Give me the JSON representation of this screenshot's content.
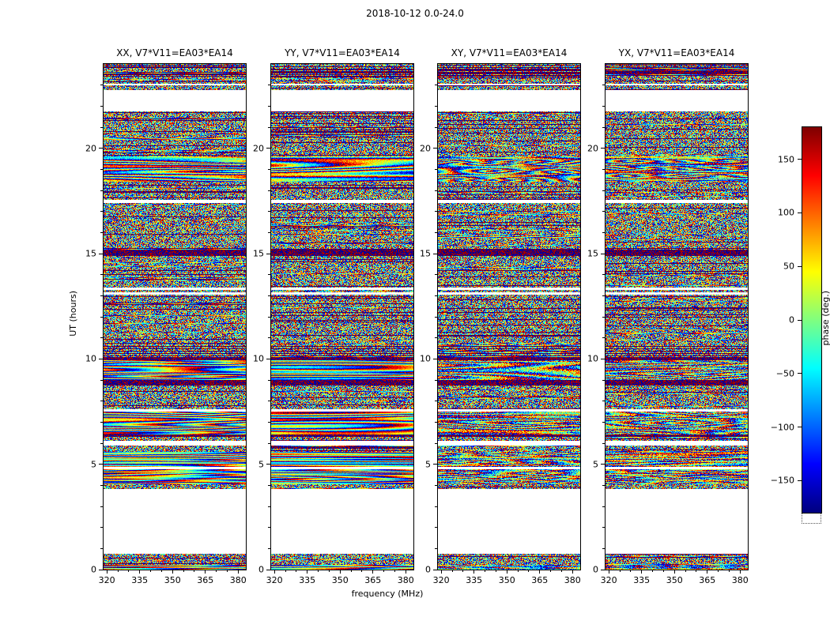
{
  "figure": {
    "title": "2018-10-12 0.0-24.0"
  },
  "chart_data": {
    "type": "heatmap",
    "title": "2018-10-12 0.0-24.0",
    "xlabel": "frequency (MHz)",
    "ylabel": "UT (hours)",
    "panels": [
      {
        "id": "XX",
        "title": "XX, V7*V11=EA03*EA14",
        "pol": "co"
      },
      {
        "id": "YY",
        "title": "YY, V7*V11=EA03*EA14",
        "pol": "co"
      },
      {
        "id": "XY",
        "title": "XY, V7*V11=EA03*EA14",
        "pol": "cross"
      },
      {
        "id": "YX",
        "title": "YX, V7*V11=EA03*EA14",
        "pol": "cross"
      }
    ],
    "x_axis": {
      "min": 318.5,
      "max": 383.5,
      "major_ticks": [
        320,
        335,
        350,
        365,
        380
      ],
      "minor_step": 5
    },
    "y_axis": {
      "min": 0,
      "max": 24,
      "major_ticks": [
        0,
        5,
        10,
        15,
        20
      ],
      "minor_step": 1
    },
    "colorbar": {
      "label": "phase (deg.)",
      "min": -180,
      "max": 180,
      "ticks": [
        150,
        100,
        50,
        0,
        -50,
        -100,
        -150
      ],
      "colormap": "jet"
    },
    "time_segments": [
      [
        0.0,
        0.22,
        "fringe"
      ],
      [
        0.22,
        0.75,
        "noise"
      ],
      [
        0.75,
        3.83,
        "white"
      ],
      [
        3.83,
        4.05,
        "noise"
      ],
      [
        4.05,
        4.76,
        "fringe"
      ],
      [
        4.76,
        4.88,
        "white"
      ],
      [
        4.88,
        5.6,
        "fringe"
      ],
      [
        5.6,
        5.9,
        "noise"
      ],
      [
        5.9,
        6.1,
        "white"
      ],
      [
        6.1,
        6.3,
        "noise"
      ],
      [
        6.3,
        6.42,
        "dark"
      ],
      [
        6.42,
        7.5,
        "fringe"
      ],
      [
        7.5,
        7.62,
        "white"
      ],
      [
        7.62,
        8.74,
        "noise"
      ],
      [
        8.74,
        9.0,
        "dark"
      ],
      [
        9.0,
        9.94,
        "fringe"
      ],
      [
        9.94,
        10.1,
        "dark"
      ],
      [
        10.1,
        10.7,
        "noise2"
      ],
      [
        10.7,
        13.05,
        "noise"
      ],
      [
        13.05,
        13.15,
        "white"
      ],
      [
        13.15,
        13.28,
        "noise"
      ],
      [
        13.28,
        13.4,
        "white"
      ],
      [
        13.4,
        14.9,
        "noise"
      ],
      [
        14.9,
        15.2,
        "dark"
      ],
      [
        15.2,
        17.4,
        "noise"
      ],
      [
        17.4,
        17.55,
        "white"
      ],
      [
        17.55,
        18.4,
        "noise"
      ],
      [
        18.4,
        19.6,
        "fringe2"
      ],
      [
        19.6,
        21.75,
        "noise"
      ],
      [
        21.75,
        22.77,
        "white"
      ],
      [
        22.77,
        23.0,
        "noise"
      ],
      [
        23.0,
        23.08,
        "white"
      ],
      [
        23.08,
        23.38,
        "noise"
      ],
      [
        23.38,
        24.0,
        "densenoise"
      ]
    ]
  }
}
